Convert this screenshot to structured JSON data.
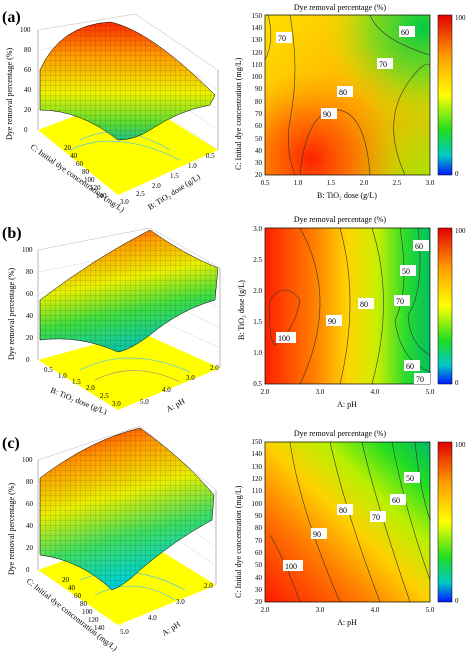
{
  "panels": [
    {
      "tag": "(a)",
      "surface": {
        "zlabel": "Dye removal percentage (%)",
        "zticks": [
          "0",
          "20",
          "40",
          "60",
          "80",
          "100"
        ],
        "axis1_label": "C: Initial dye concentration (mg/L)",
        "axis1_ticks": [
          "20",
          "40",
          "60",
          "80",
          "100",
          "120",
          "140"
        ],
        "axis2_label": "B: TiO₂ dose (g/L)",
        "axis2_ticks": [
          "3.0",
          "2.5",
          "2.0",
          "1.5",
          "1.0",
          "0.5"
        ]
      },
      "contour": {
        "title": "Dye removal percentage (%)",
        "xlabel": "B: TiO₂ dose (g/L)",
        "ylabel": "C: Initial dye concentration (mg/L)",
        "xticks": [
          "0.5",
          "1.0",
          "1.5",
          "2.0",
          "2.5",
          "3.0"
        ],
        "yticks": [
          "20",
          "30",
          "40",
          "50",
          "60",
          "70",
          "80",
          "90",
          "100",
          "110",
          "120",
          "130",
          "140",
          "150"
        ],
        "levels": [
          "70",
          "60",
          "80",
          "70",
          "90"
        ],
        "colorbar": [
          "100",
          "0"
        ]
      }
    },
    {
      "tag": "(b)",
      "surface": {
        "zlabel": "Dye removal percentage (%)",
        "zticks": [
          "0",
          "20",
          "40",
          "60",
          "80",
          "100"
        ],
        "axis1_label": "B: TiO₂ dose (g/L)",
        "axis1_ticks": [
          "0.5",
          "1.0",
          "1.5",
          "2.0",
          "2.5",
          "3.0"
        ],
        "axis2_label": "A: pH",
        "axis2_ticks": [
          "5.0",
          "4.0",
          "3.0",
          "2.0"
        ]
      },
      "contour": {
        "title": "Dye removal percentage (%)",
        "xlabel": "A: pH",
        "ylabel": "B: TiO₂ dose (g/L)",
        "xticks": [
          "2.0",
          "3.0",
          "4.0",
          "5.0"
        ],
        "yticks": [
          "0.5",
          "1.0",
          "1.5",
          "2.0",
          "2.5",
          "3.0"
        ],
        "levels": [
          "100",
          "90",
          "80",
          "70",
          "60",
          "50",
          "60",
          "70"
        ],
        "colorbar": [
          "100",
          "0"
        ]
      }
    },
    {
      "tag": "(c)",
      "surface": {
        "zlabel": "Dye removal percentage (%)",
        "zticks": [
          "0",
          "20",
          "40",
          "60",
          "80",
          "100"
        ],
        "axis1_label": "C: Initial dye concentration (mg/L)",
        "axis1_ticks": [
          "20",
          "40",
          "60",
          "80",
          "100",
          "120",
          "140"
        ],
        "axis2_label": "A: pH",
        "axis2_ticks": [
          "5.0",
          "4.0",
          "3.0",
          "2.0"
        ]
      },
      "contour": {
        "title": "Dye removal percentage (%)",
        "xlabel": "A: pH",
        "ylabel": "C: Initial dye concentration (mg/L)",
        "xticks": [
          "2.0",
          "3.0",
          "4.0",
          "5.0"
        ],
        "yticks": [
          "20",
          "30",
          "40",
          "50",
          "60",
          "70",
          "80",
          "90",
          "100",
          "110",
          "120",
          "130",
          "140",
          "150"
        ],
        "levels": [
          "100",
          "90",
          "80",
          "70",
          "60",
          "50"
        ],
        "colorbar": [
          "100",
          "0"
        ]
      }
    }
  ],
  "chart_data": [
    {
      "type": "surface",
      "panel": "(a)",
      "x_name": "TiO₂ dose",
      "x_range": [
        0.5,
        3.0
      ],
      "y_name": "Initial dye concentration",
      "y_range": [
        20,
        140
      ],
      "zlim": [
        0,
        100
      ]
    },
    {
      "type": "contour",
      "panel": "(a)",
      "title": "Dye removal percentage (%)",
      "x_range": [
        0.5,
        3.0
      ],
      "y_range": [
        20,
        150
      ],
      "contour_levels": [
        60,
        70,
        80,
        90
      ],
      "colorbar_range": [
        0,
        100
      ]
    },
    {
      "type": "surface",
      "panel": "(b)",
      "x_name": "pH",
      "x_range": [
        2.0,
        5.0
      ],
      "y_name": "TiO₂ dose",
      "y_range": [
        0.5,
        3.0
      ],
      "zlim": [
        0,
        100
      ]
    },
    {
      "type": "contour",
      "panel": "(b)",
      "title": "Dye removal percentage (%)",
      "x_range": [
        2.0,
        5.0
      ],
      "y_range": [
        0.5,
        3.0
      ],
      "contour_levels": [
        50,
        60,
        70,
        80,
        90,
        100
      ],
      "colorbar_range": [
        0,
        100
      ]
    },
    {
      "type": "surface",
      "panel": "(c)",
      "x_name": "pH",
      "x_range": [
        2.0,
        5.0
      ],
      "y_name": "Initial dye concentration",
      "y_range": [
        20,
        140
      ],
      "zlim": [
        0,
        100
      ]
    },
    {
      "type": "contour",
      "panel": "(c)",
      "title": "Dye removal percentage (%)",
      "x_range": [
        2.0,
        5.0
      ],
      "y_range": [
        20,
        150
      ],
      "contour_levels": [
        50,
        60,
        70,
        80,
        90,
        100
      ],
      "colorbar_range": [
        0,
        100
      ]
    }
  ]
}
